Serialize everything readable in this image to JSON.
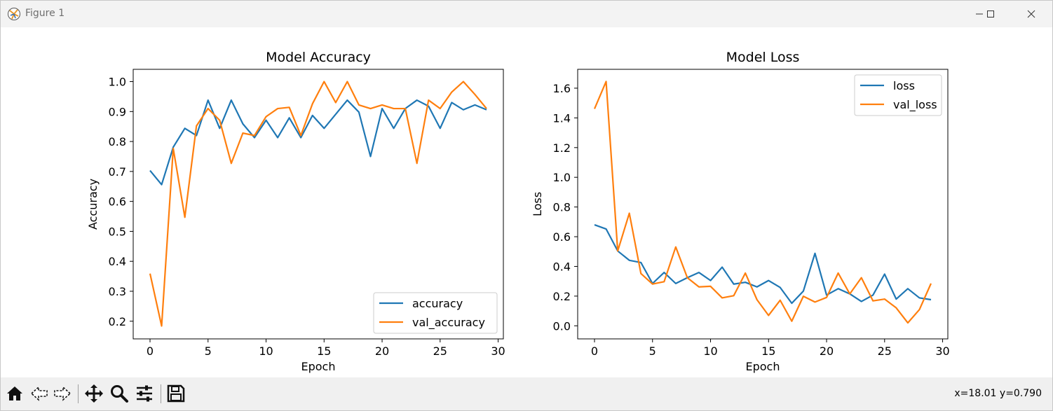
{
  "window": {
    "title": "Figure 1"
  },
  "toolbar": {
    "buttons": [
      "home-icon",
      "back-arrow-icon",
      "forward-arrow-icon",
      "pan-icon",
      "zoom-icon",
      "subplots-config-icon",
      "save-icon"
    ],
    "coords": "x=18.01 y=0.790"
  },
  "colors": {
    "series1": "#1f77b4",
    "series2": "#ff7f0e"
  },
  "chart_data": [
    {
      "type": "line",
      "title": "Model Accuracy",
      "xlabel": "Epoch",
      "ylabel": "Accuracy",
      "xlim": [
        -1.45,
        30.45
      ],
      "ylim": [
        0.141,
        1.041
      ],
      "xticks": [
        0,
        5,
        10,
        15,
        20,
        25,
        30
      ],
      "yticks": [
        0.2,
        0.3,
        0.4,
        0.5,
        0.6,
        0.7,
        0.8,
        0.9,
        1.0
      ],
      "ytick_labels": [
        "0.2",
        "0.3",
        "0.4",
        "0.5",
        "0.6",
        "0.7",
        "0.8",
        "0.9",
        "1.0"
      ],
      "legend_position": "lower-right",
      "x": [
        0,
        1,
        2,
        3,
        4,
        5,
        6,
        7,
        8,
        9,
        10,
        11,
        12,
        13,
        14,
        15,
        16,
        17,
        18,
        19,
        20,
        21,
        22,
        23,
        24,
        25,
        26,
        27,
        28,
        29
      ],
      "series": [
        {
          "name": "accuracy",
          "values": [
            0.703,
            0.656,
            0.781,
            0.844,
            0.82,
            0.938,
            0.844,
            0.938,
            0.859,
            0.813,
            0.871,
            0.813,
            0.879,
            0.813,
            0.887,
            0.844,
            0.891,
            0.938,
            0.898,
            0.75,
            0.91,
            0.844,
            0.91,
            0.938,
            0.918,
            0.844,
            0.93,
            0.906,
            0.922,
            0.906
          ]
        },
        {
          "name": "val_accuracy",
          "values": [
            0.359,
            0.184,
            0.777,
            0.547,
            0.852,
            0.91,
            0.871,
            0.727,
            0.828,
            0.82,
            0.883,
            0.91,
            0.914,
            0.82,
            0.926,
            1.0,
            0.93,
            1.0,
            0.922,
            0.91,
            0.922,
            0.91,
            0.91,
            0.727,
            0.938,
            0.91,
            0.965,
            1.0,
            0.957,
            0.91
          ]
        }
      ]
    },
    {
      "type": "line",
      "title": "Model Loss",
      "xlabel": "Epoch",
      "ylabel": "Loss",
      "xlim": [
        -1.45,
        30.45
      ],
      "ylim": [
        -0.088,
        1.727
      ],
      "xticks": [
        0,
        5,
        10,
        15,
        20,
        25,
        30
      ],
      "yticks": [
        0.0,
        0.2,
        0.4,
        0.6,
        0.8,
        1.0,
        1.2,
        1.4,
        1.6
      ],
      "ytick_labels": [
        "0.0",
        "0.2",
        "0.4",
        "0.6",
        "0.8",
        "1.0",
        "1.2",
        "1.4",
        "1.6"
      ],
      "legend_position": "upper-right",
      "x": [
        0,
        1,
        2,
        3,
        4,
        5,
        6,
        7,
        8,
        9,
        10,
        11,
        12,
        13,
        14,
        15,
        16,
        17,
        18,
        19,
        20,
        21,
        22,
        23,
        24,
        25,
        26,
        27,
        28,
        29
      ],
      "series": [
        {
          "name": "loss",
          "values": [
            0.68,
            0.652,
            0.504,
            0.441,
            0.426,
            0.285,
            0.359,
            0.285,
            0.324,
            0.359,
            0.305,
            0.395,
            0.281,
            0.293,
            0.262,
            0.305,
            0.258,
            0.152,
            0.234,
            0.488,
            0.207,
            0.25,
            0.215,
            0.164,
            0.207,
            0.348,
            0.18,
            0.25,
            0.188,
            0.176
          ]
        },
        {
          "name": "val_loss",
          "values": [
            1.461,
            1.645,
            0.504,
            0.758,
            0.352,
            0.281,
            0.297,
            0.531,
            0.324,
            0.262,
            0.266,
            0.188,
            0.203,
            0.355,
            0.176,
            0.07,
            0.172,
            0.031,
            0.199,
            0.16,
            0.191,
            0.355,
            0.215,
            0.324,
            0.168,
            0.18,
            0.121,
            0.02,
            0.109,
            0.285
          ]
        }
      ]
    }
  ]
}
